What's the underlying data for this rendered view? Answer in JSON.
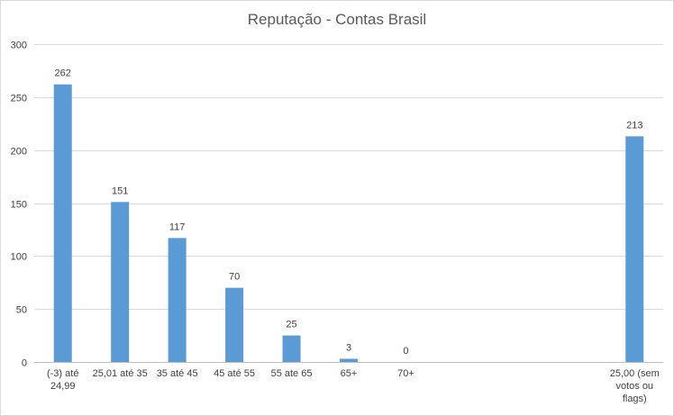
{
  "chart_data": {
    "type": "bar",
    "title": "Reputação - Contas Brasil",
    "xlabel": "",
    "ylabel": "",
    "ylim": [
      0,
      300
    ],
    "yticks": [
      0,
      50,
      100,
      150,
      200,
      250,
      300
    ],
    "grid": true,
    "legend": "none",
    "bar_color": "#5b9bd5",
    "categories": [
      [
        "(-3) até",
        "24,99"
      ],
      [
        "25,01 até 35"
      ],
      [
        "35 até 45"
      ],
      [
        "45 até 55"
      ],
      [
        "55 ate 65"
      ],
      [
        "65+"
      ],
      [
        "70+"
      ],
      [
        ""
      ],
      [
        ""
      ],
      [
        ""
      ],
      [
        "25,00 (sem",
        "votos ou",
        "flags)"
      ]
    ],
    "values": [
      262,
      151,
      117,
      70,
      25,
      3,
      0,
      null,
      null,
      null,
      213
    ],
    "data_labels": [
      "262",
      "151",
      "117",
      "70",
      "25",
      "3",
      "0",
      "",
      "",
      "",
      "213"
    ]
  }
}
